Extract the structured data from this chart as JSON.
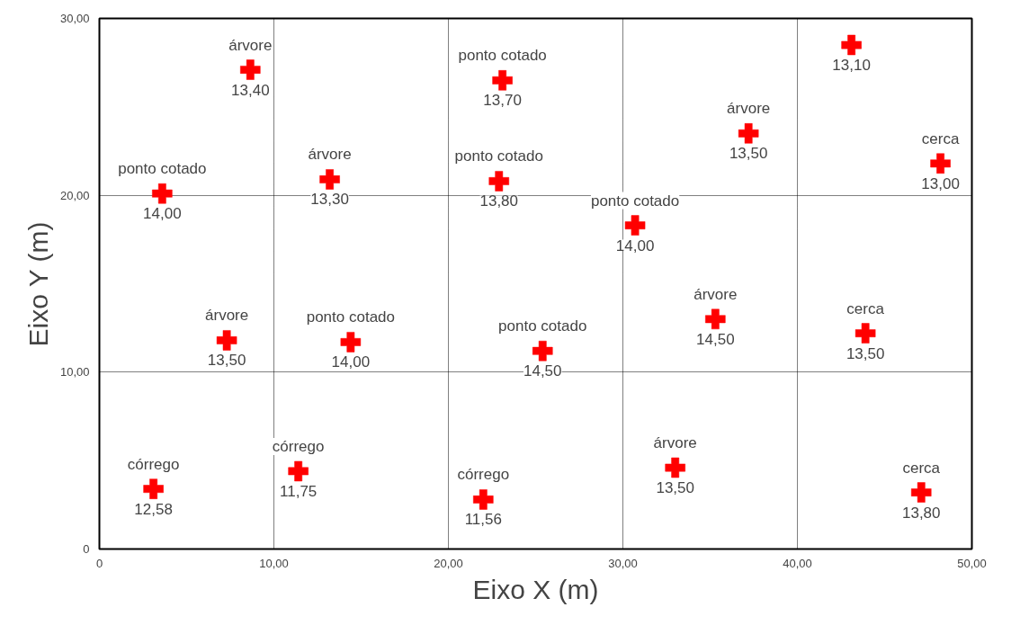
{
  "chart_data": {
    "type": "scatter",
    "xlabel": "Eixo X (m)",
    "ylabel": "Eixo Y (m)",
    "xlim": [
      0,
      50
    ],
    "ylim": [
      0,
      30
    ],
    "xticks": [
      0,
      {
        "value": 10,
        "label": "10,00"
      },
      {
        "value": 20,
        "label": "20,00"
      },
      {
        "value": 30,
        "label": "30,00"
      },
      {
        "value": 40,
        "label": "40,00"
      },
      {
        "value": 50,
        "label": "50,00"
      }
    ],
    "yticks": [
      0,
      {
        "value": 10,
        "label": "10,00"
      },
      {
        "value": 20,
        "label": "20,00"
      },
      {
        "value": 30,
        "label": "30,00"
      }
    ],
    "grid": true,
    "marker": "cross",
    "series": [
      {
        "color": "#ff0000",
        "x": [
          8.65,
          3.6,
          13.2,
          23.1,
          22.9,
          37.2,
          43.1,
          48.2,
          30.7,
          7.3,
          14.4,
          25.4,
          35.3,
          43.9,
          3.1,
          11.4,
          22.0,
          33.0,
          47.1
        ],
        "values": [
          27.1,
          20.1,
          20.9,
          26.5,
          20.8,
          23.5,
          28.5,
          21.8,
          18.3,
          11.8,
          11.7,
          11.2,
          13.0,
          12.2,
          3.4,
          4.4,
          2.8,
          4.6,
          3.2
        ]
      }
    ],
    "annotations": [
      {
        "text": "árvore",
        "x": 8.65,
        "y": 27.1
      },
      {
        "text": "13,40",
        "x": 8.65,
        "y": 27.1
      },
      {
        "text": "ponto cotado",
        "x": 3.6,
        "y": 20.1
      },
      {
        "text": "14,00",
        "x": 3.6,
        "y": 20.1
      },
      {
        "text": "árvore",
        "x": 13.2,
        "y": 20.9
      },
      {
        "text": "13,30",
        "x": 13.2,
        "y": 20.9
      },
      {
        "text": "ponto cotado",
        "x": 23.1,
        "y": 26.5
      },
      {
        "text": "13,70",
        "x": 23.1,
        "y": 26.5
      },
      {
        "text": "ponto cotado",
        "x": 22.9,
        "y": 20.8
      },
      {
        "text": "13,80",
        "x": 22.9,
        "y": 20.8
      },
      {
        "text": "árvore",
        "x": 37.2,
        "y": 23.5
      },
      {
        "text": "13,50",
        "x": 37.2,
        "y": 23.5
      },
      {
        "text": "13,10",
        "x": 43.1,
        "y": 28.5
      },
      {
        "text": "cerca",
        "x": 48.2,
        "y": 21.8
      },
      {
        "text": "13,00",
        "x": 48.2,
        "y": 21.8
      },
      {
        "text": "ponto cotado",
        "x": 30.7,
        "y": 18.3
      },
      {
        "text": "14,00",
        "x": 30.7,
        "y": 18.3
      },
      {
        "text": "árvore",
        "x": 7.3,
        "y": 11.8
      },
      {
        "text": "13,50",
        "x": 7.3,
        "y": 11.8
      },
      {
        "text": "ponto cotado",
        "x": 14.4,
        "y": 11.7
      },
      {
        "text": "14,00",
        "x": 14.4,
        "y": 11.7
      },
      {
        "text": "ponto cotado",
        "x": 25.4,
        "y": 11.2
      },
      {
        "text": "14,50",
        "x": 25.4,
        "y": 11.2
      },
      {
        "text": "árvore",
        "x": 35.3,
        "y": 13.0
      },
      {
        "text": "14,50",
        "x": 35.3,
        "y": 13.0
      },
      {
        "text": "cerca",
        "x": 43.9,
        "y": 12.2
      },
      {
        "text": "13,50",
        "x": 43.9,
        "y": 12.2
      },
      {
        "text": "córrego",
        "x": 3.1,
        "y": 3.4
      },
      {
        "text": "12,58",
        "x": 3.1,
        "y": 3.4
      },
      {
        "text": "córrego",
        "x": 11.4,
        "y": 4.4
      },
      {
        "text": "11,75",
        "x": 11.4,
        "y": 4.4
      },
      {
        "text": "córrego",
        "x": 22.0,
        "y": 2.8
      },
      {
        "text": "11,56",
        "x": 22.0,
        "y": 2.8
      },
      {
        "text": "árvore",
        "x": 33.0,
        "y": 4.6
      },
      {
        "text": "13,50",
        "x": 33.0,
        "y": 4.6
      },
      {
        "text": "cerca",
        "x": 47.1,
        "y": 3.2
      },
      {
        "text": "13,80",
        "x": 47.1,
        "y": 3.2
      }
    ]
  }
}
